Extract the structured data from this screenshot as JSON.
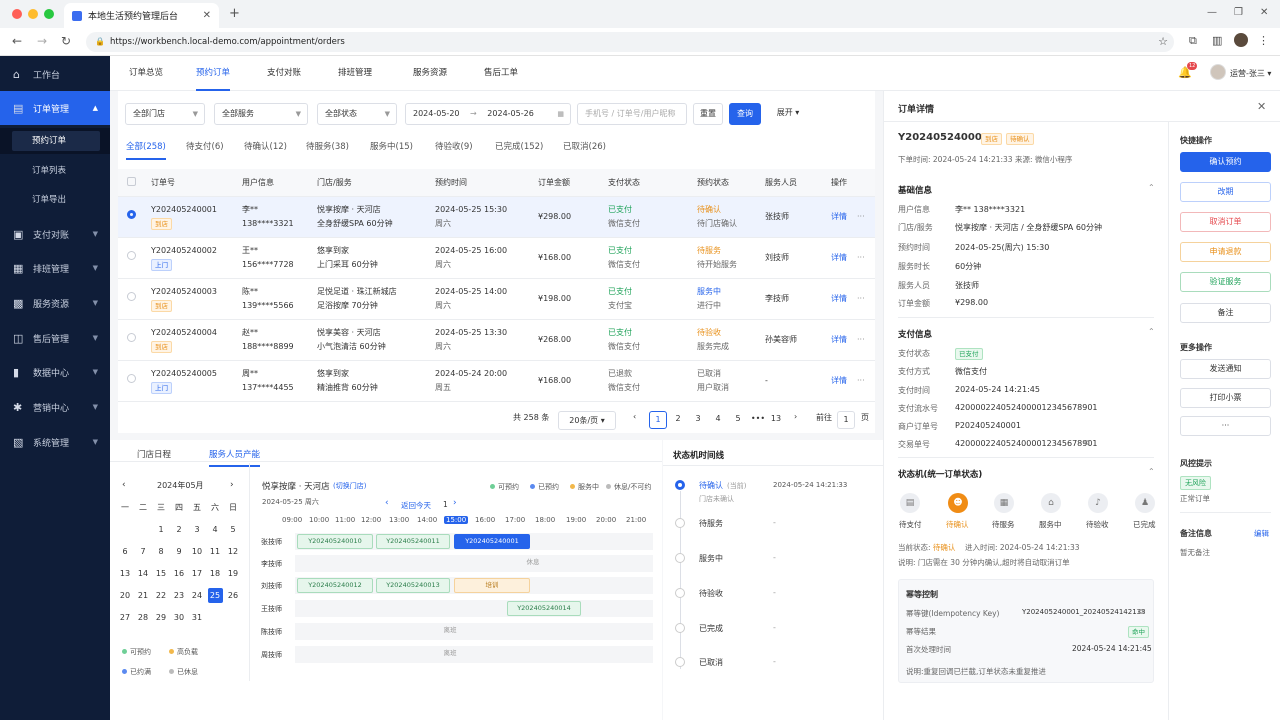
{
  "browser": {
    "tab_title": "本地生活预约管理后台",
    "url": "https://workbench.local-demo.com/appointment/orders"
  },
  "sidebar": {
    "items": [
      {
        "label": "工作台",
        "icon": "home-icon"
      },
      {
        "label": "订单管理",
        "icon": "orders-icon"
      },
      {
        "label": "支付对账",
        "icon": "payment-icon"
      },
      {
        "label": "排班管理",
        "icon": "schedule-icon"
      },
      {
        "label": "服务资源",
        "icon": "resource-icon"
      },
      {
        "label": "售后管理",
        "icon": "aftersale-icon"
      },
      {
        "label": "数据中心",
        "icon": "chart-icon"
      },
      {
        "label": "营销中心",
        "icon": "gear-icon"
      },
      {
        "label": "系统管理",
        "icon": "system-icon"
      }
    ],
    "sub_items": [
      "预约订单",
      "订单列表",
      "订单导出"
    ]
  },
  "topnav": {
    "tabs": [
      "订单总览",
      "预约订单",
      "支付对账",
      "排班管理",
      "服务资源",
      "售后工单"
    ],
    "notif_count": "12",
    "user": "运营-张三"
  },
  "filters": {
    "store": "全部门店",
    "service": "全部服务",
    "status": "全部状态",
    "date_from": "2024-05-20",
    "date_to": "2024-05-26",
    "keyword_placeholder": "手机号 / 订单号/用户昵称",
    "reset": "重置",
    "search": "查询",
    "expand": "展开"
  },
  "status_tabs": [
    "全部(258)",
    "待支付(6)",
    "待确认(12)",
    "待服务(38)",
    "服务中(15)",
    "待验收(9)",
    "已完成(152)",
    "已取消(26)"
  ],
  "table": {
    "headers": [
      "订单号",
      "用户信息",
      "门店/服务",
      "预约时间",
      "订单金额",
      "支付状态",
      "预约状态",
      "服务人员",
      "操作"
    ],
    "rows": [
      {
        "id": "Y202405240001",
        "tag": "到店",
        "user": "李**",
        "phone": "138****3321",
        "store": "悦享按摩 · 天河店",
        "service": "全身舒缓SPA  60分钟",
        "time": "2024-05-25  15:30",
        "weekday": "周六",
        "amount": "¥298.00",
        "pay": "已支付",
        "pay_method": "微信支付",
        "state": "待确认",
        "state_sub": "待门店确认",
        "staff": "张技师",
        "action": "详情"
      },
      {
        "id": "Y202405240002",
        "tag": "上门",
        "user": "王**",
        "phone": "156****7728",
        "store": "悠享到家",
        "service": "上门采耳  60分钟",
        "time": "2024-05-25  16:00",
        "weekday": "周六",
        "amount": "¥168.00",
        "pay": "已支付",
        "pay_method": "微信支付",
        "state": "待服务",
        "state_sub": "待开始服务",
        "staff": "刘技师",
        "action": "详情"
      },
      {
        "id": "Y202405240003",
        "tag": "到店",
        "user": "陈**",
        "phone": "139****5566",
        "store": "足悦足道 · 珠江新城店",
        "service": "足浴按摩  70分钟",
        "time": "2024-05-25  14:00",
        "weekday": "周六",
        "amount": "¥198.00",
        "pay": "已支付",
        "pay_method": "支付宝",
        "state": "服务中",
        "state_sub": "进行中",
        "staff": "李技师",
        "action": "详情"
      },
      {
        "id": "Y202405240004",
        "tag": "到店",
        "user": "赵**",
        "phone": "188****8899",
        "store": "悦享美容 · 天河店",
        "service": "小气泡清洁  60分钟",
        "time": "2024-05-25  13:30",
        "weekday": "周六",
        "amount": "¥268.00",
        "pay": "已支付",
        "pay_method": "微信支付",
        "state": "待验收",
        "state_sub": "服务完成",
        "staff": "孙美容师",
        "action": "详情"
      },
      {
        "id": "Y202405240005",
        "tag": "上门",
        "user": "周**",
        "phone": "137****4455",
        "store": "悠享到家",
        "service": "精油推背  60分钟",
        "time": "2024-05-24  20:00",
        "weekday": "周五",
        "amount": "¥168.00",
        "pay": "已退款",
        "pay_method": "微信支付",
        "state": "已取消",
        "state_sub": "用户取消",
        "staff": "-",
        "action": "详情"
      }
    ]
  },
  "pagination": {
    "total": "共 258 条",
    "size": "20条/页",
    "pages": [
      "1",
      "2",
      "3",
      "4",
      "5",
      "•••",
      "13"
    ],
    "goto": "前往",
    "goto_value": "1",
    "page_unit": "页"
  },
  "bottom_tabs": [
    "门店日程",
    "服务人员产能"
  ],
  "calendar": {
    "month": "2024年05月",
    "weekdays": [
      "一",
      "二",
      "三",
      "四",
      "五",
      "六",
      "日"
    ],
    "weeks": [
      [
        "",
        "",
        "1",
        "2",
        "3",
        "4",
        "5"
      ],
      [
        "6",
        "7",
        "8",
        "9",
        "10",
        "11",
        "12"
      ],
      [
        "13",
        "14",
        "15",
        "16",
        "17",
        "18",
        "19"
      ],
      [
        "20",
        "21",
        "22",
        "23",
        "24",
        "25",
        "26"
      ],
      [
        "27",
        "28",
        "29",
        "30",
        "31",
        "",
        ""
      ]
    ],
    "selected": "25",
    "legend": [
      "可预约",
      "高负载",
      "已约满",
      "已休息"
    ]
  },
  "capacity": {
    "store": "悦享按摩 · 天河店",
    "switch": "(切换门店)",
    "date": "2024-05-25 周六",
    "back_today": "返回今天",
    "page": "1",
    "legend": [
      "可预约",
      "已预约",
      "服务中",
      "休息/不可约"
    ],
    "hours": [
      "09:00",
      "10:00",
      "11:00",
      "12:00",
      "13:00",
      "14:00",
      "15:00",
      "16:00",
      "17:00",
      "18:00",
      "19:00",
      "20:00",
      "21:00"
    ],
    "staff": [
      "张技师",
      "李技师",
      "刘技师",
      "王技师",
      "陈技师",
      "周技师"
    ],
    "blocks": {
      "z1": "Y202405240010",
      "z2": "Y202405240011",
      "z3": "Y202405240001",
      "l1": "休息",
      "r1": "Y202405240012",
      "r2": "Y202405240013",
      "r3": "培训",
      "w1": "Y202405240014",
      "c1": "离班",
      "h1": "离班"
    }
  },
  "timeline": {
    "title": "状态机时间线",
    "items": [
      {
        "label": "待确认",
        "tag": "(当前)",
        "sub": "门店未确认",
        "time": "2024-05-24 14:21:33"
      },
      {
        "label": "待服务",
        "time": "-"
      },
      {
        "label": "服务中",
        "time": "-"
      },
      {
        "label": "待验收",
        "time": "-"
      },
      {
        "label": "已完成",
        "time": "-"
      },
      {
        "label": "已取消",
        "time": "-"
      }
    ]
  },
  "detail": {
    "title": "订单详情",
    "order_id": "Y202405240001",
    "tag1": "到店",
    "tag2": "待确认",
    "meta": "下单时间:  2024-05-24 14:21:33      来源:  微信小程序",
    "basic_title": "基础信息",
    "basic": [
      {
        "k": "用户信息",
        "v": "李**     138****3321"
      },
      {
        "k": "门店/服务",
        "v": "悦享按摩 · 天河店   /   全身舒缓SPA 60分钟"
      },
      {
        "k": "预约时间",
        "v": "2024-05-25(周六) 15:30"
      },
      {
        "k": "服务时长",
        "v": "60分钟"
      },
      {
        "k": "服务人员",
        "v": "张技师"
      },
      {
        "k": "订单金额",
        "v": "¥298.00"
      }
    ],
    "pay_title": "支付信息",
    "pay_status_label": "支付状态",
    "pay_status": "已支付",
    "pay": [
      {
        "k": "支付方式",
        "v": "微信支付"
      },
      {
        "k": "支付时间",
        "v": "2024-05-24 14:21:45"
      },
      {
        "k": "支付流水号",
        "v": "4200002240524000012345678901"
      },
      {
        "k": "商户订单号",
        "v": "P202405240001"
      },
      {
        "k": "交易单号",
        "v": "4200002240524000012345678901"
      }
    ],
    "sm_title": "状态机(统一订单状态)",
    "steps": [
      "待支付",
      "待确认",
      "待服务",
      "服务中",
      "待验收",
      "已完成"
    ],
    "current": "当前状态:  待确认      进入时间:  2024-05-24 14:21:33",
    "current_state": "待确认",
    "current_prefix": "当前状态:",
    "current_time": "进入时间:  2024-05-24 14:21:33",
    "note": "说明:  门店需在 30 分钟内确认,超时将自动取消订单",
    "idem_title": "幂等控制",
    "idem": [
      {
        "k": "幂等键(Idempotency Key)",
        "v": "Y202405240001_20240524142133"
      },
      {
        "k": "幂等结果",
        "v": "命中"
      },
      {
        "k": "首次处理时间",
        "v": "2024-05-24 14:21:45"
      }
    ],
    "idem_note": "说明:重复回调已拦截,订单状态未重复推进"
  },
  "quick": {
    "title": "快捷操作",
    "actions": [
      "确认预约",
      "改期",
      "取消订单",
      "申请退款",
      "验证服务",
      "备注"
    ],
    "more_title": "更多操作",
    "more": [
      "发送通知",
      "打印小票",
      "···"
    ],
    "risk_title": "风控提示",
    "risk_tag": "无风险",
    "risk_sub": "正常订单",
    "remark_title": "备注信息",
    "remark_edit": "编辑",
    "remark_value": "暂无备注"
  }
}
